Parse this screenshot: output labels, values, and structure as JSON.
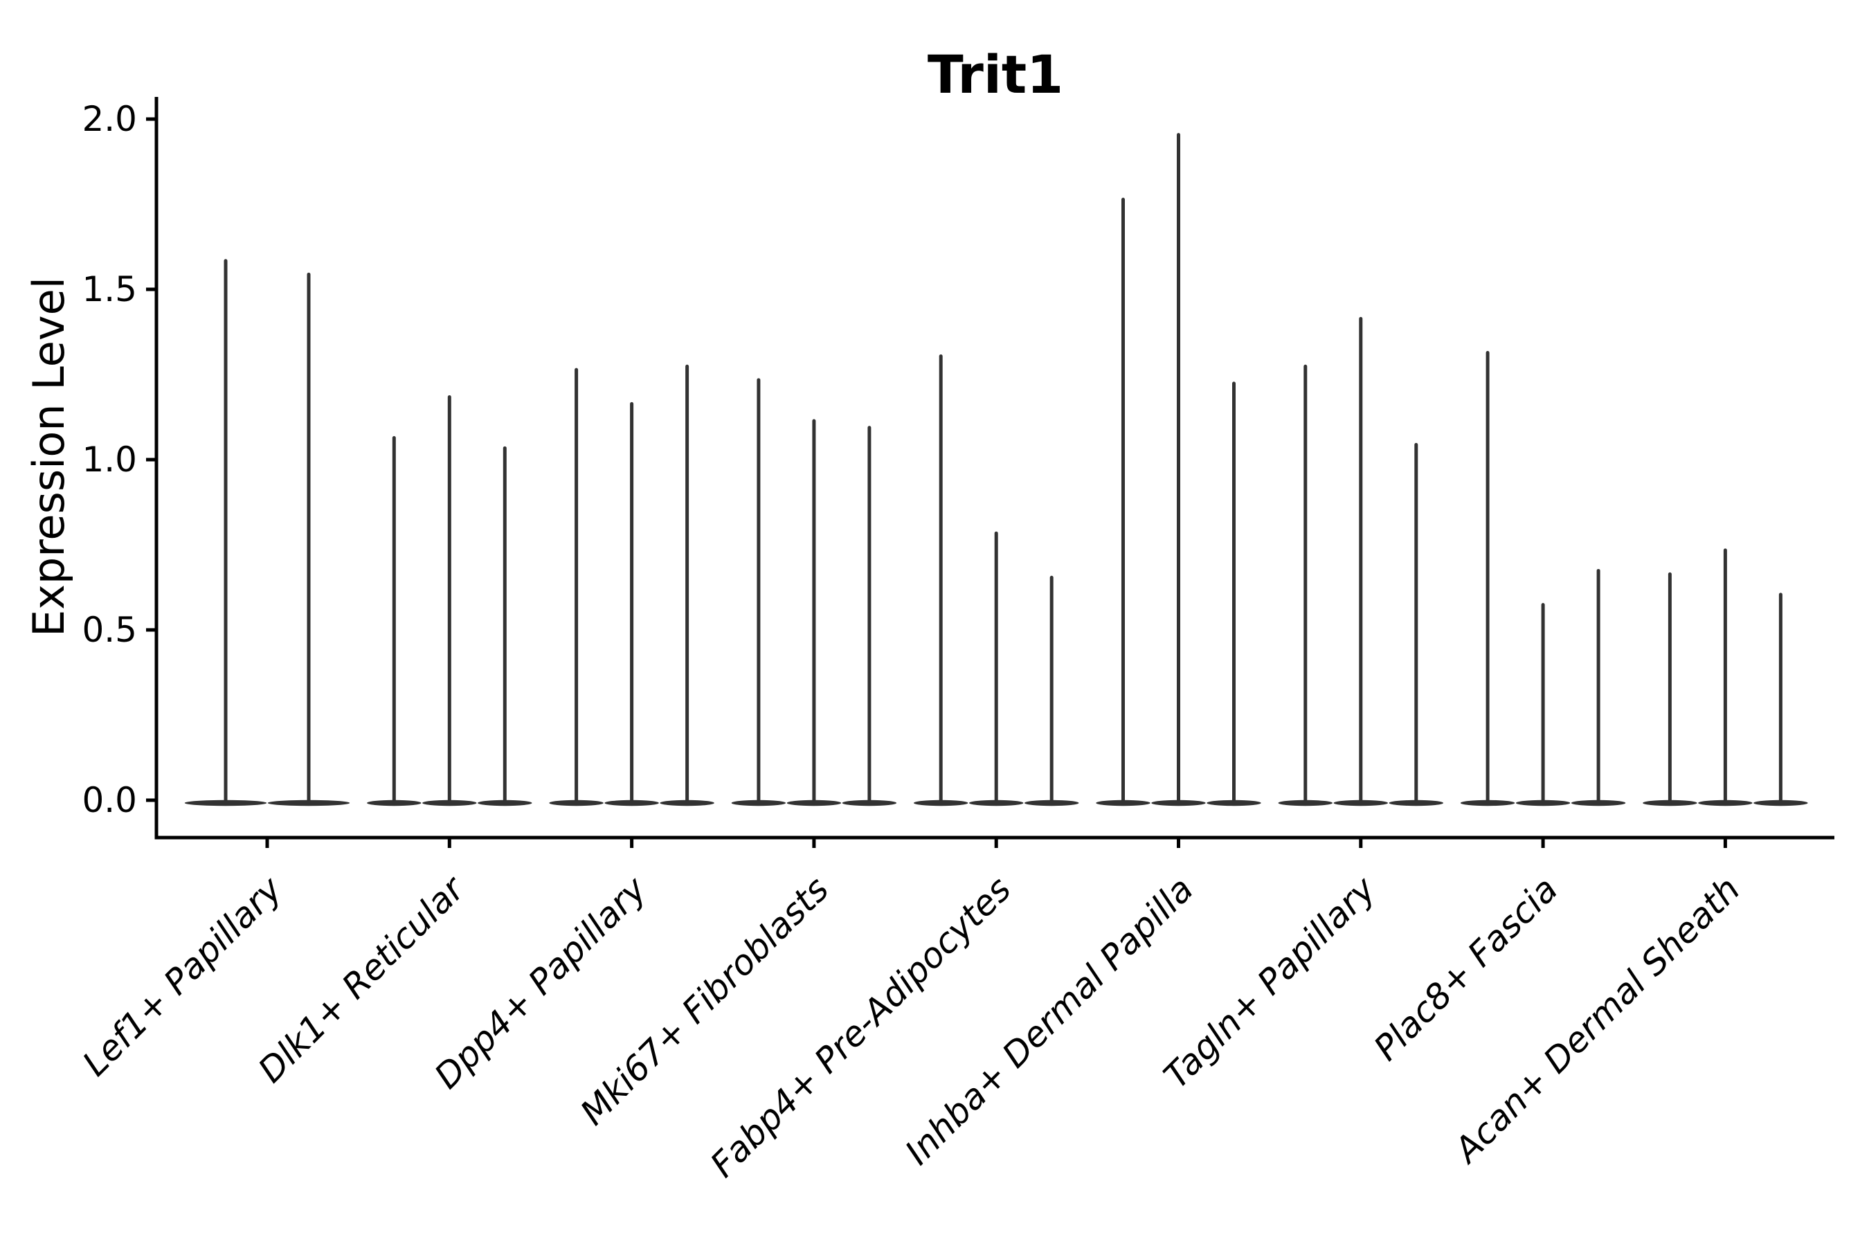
{
  "chart_data": {
    "type": "violin",
    "title": "Trit1",
    "ylabel": "Expression Level",
    "xlabel": "",
    "y_ticks": [
      "0.0",
      "0.5",
      "1.0",
      "1.5",
      "2.0"
    ],
    "y_tick_values": [
      0.0,
      0.5,
      1.0,
      1.5,
      2.0
    ],
    "ylim": [
      -0.11,
      2.06
    ],
    "grid": false,
    "legend_position": "none",
    "x_tick_rotation_deg": 45,
    "categories": [
      "Lef1+ Papillary",
      "Dlk1+ Reticular",
      "Dpp4+ Papillary",
      "Mki67+ Fibroblasts",
      "Fabp4+ Pre-Adipocytes",
      "Inhba+ Dermal Papilla",
      "Tagln+ Papillary",
      "Plac8+ Fascia",
      "Acan+ Dermal Sheath"
    ],
    "series": [
      {
        "category": "Lef1+ Papillary",
        "violin_maxima": [
          1.59,
          1.55
        ]
      },
      {
        "category": "Dlk1+ Reticular",
        "violin_maxima": [
          1.07,
          1.19,
          1.04
        ]
      },
      {
        "category": "Dpp4+ Papillary",
        "violin_maxima": [
          1.27,
          1.17,
          1.28
        ]
      },
      {
        "category": "Mki67+ Fibroblasts",
        "violin_maxima": [
          1.24,
          1.12,
          1.1
        ]
      },
      {
        "category": "Fabp4+ Pre-Adipocytes",
        "violin_maxima": [
          1.31,
          0.79,
          0.66
        ]
      },
      {
        "category": "Inhba+ Dermal Papilla",
        "violin_maxima": [
          1.77,
          1.96,
          1.23
        ]
      },
      {
        "category": "Tagln+ Papillary",
        "violin_maxima": [
          1.28,
          1.42,
          1.05
        ]
      },
      {
        "category": "Plac8+ Fascia",
        "violin_maxima": [
          1.32,
          0.58,
          0.68
        ]
      },
      {
        "category": "Acan+ Dermal Sheath",
        "violin_maxima": [
          0.67,
          0.74,
          0.61
        ]
      }
    ],
    "description": "Violin plot of expression level per fibroblast cluster; each cluster shows 2-3 thin violins (most mass at 0 with a narrow spike to the maximum).",
    "colors": {
      "violin": "#323232",
      "axis": "#000000",
      "background": "#ffffff"
    }
  }
}
